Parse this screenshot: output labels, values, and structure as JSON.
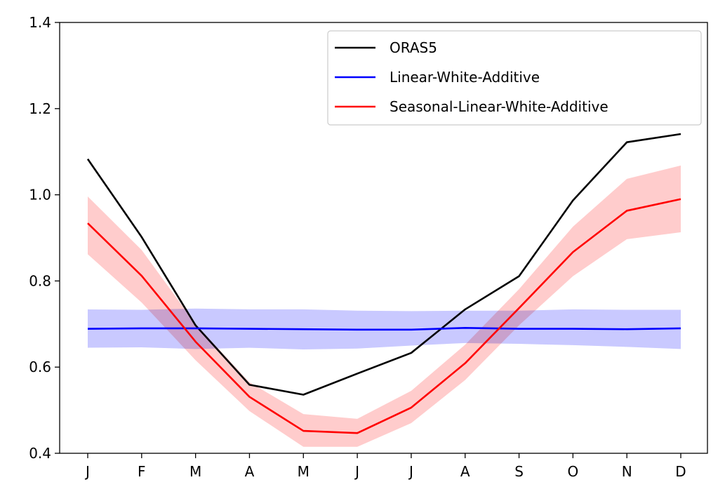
{
  "chart_data": {
    "type": "line",
    "title": "",
    "xlabel": "",
    "ylabel": "",
    "categories": [
      "J",
      "F",
      "M",
      "A",
      "M",
      "J",
      "J",
      "A",
      "S",
      "O",
      "N",
      "D"
    ],
    "ylim": [
      0.4,
      1.4
    ],
    "yticks": [
      "0.4",
      "0.6",
      "0.8",
      "1.0",
      "1.2",
      "1.4"
    ],
    "grid": false,
    "legend_position": "top-right",
    "series": [
      {
        "name": "ORAS5",
        "color": "#000000",
        "values": [
          1.083,
          0.902,
          0.697,
          0.559,
          0.536,
          0.585,
          0.633,
          0.734,
          0.811,
          0.987,
          1.122,
          1.141
        ]
      },
      {
        "name": "Linear-White-Additive",
        "color": "#0000ff",
        "band_color": "#c9c9ff",
        "values": [
          0.689,
          0.69,
          0.69,
          0.689,
          0.688,
          0.687,
          0.687,
          0.691,
          0.689,
          0.689,
          0.688,
          0.69
        ],
        "lower": [
          0.645,
          0.646,
          0.642,
          0.645,
          0.641,
          0.643,
          0.65,
          0.656,
          0.654,
          0.651,
          0.647,
          0.642
        ],
        "upper": [
          0.734,
          0.733,
          0.736,
          0.734,
          0.734,
          0.731,
          0.73,
          0.731,
          0.731,
          0.734,
          0.733,
          0.733
        ]
      },
      {
        "name": "Seasonal-Linear-White-Additive",
        "color": "#ff0000",
        "band_color": "#ffcccc",
        "values": [
          0.934,
          0.812,
          0.659,
          0.531,
          0.452,
          0.447,
          0.506,
          0.609,
          0.737,
          0.867,
          0.963,
          0.99
        ],
        "lower": [
          0.862,
          0.75,
          0.616,
          0.498,
          0.415,
          0.415,
          0.47,
          0.57,
          0.697,
          0.811,
          0.897,
          0.913
        ],
        "upper": [
          0.996,
          0.872,
          0.7,
          0.565,
          0.491,
          0.48,
          0.545,
          0.652,
          0.781,
          0.926,
          1.037,
          1.068
        ]
      }
    ]
  }
}
